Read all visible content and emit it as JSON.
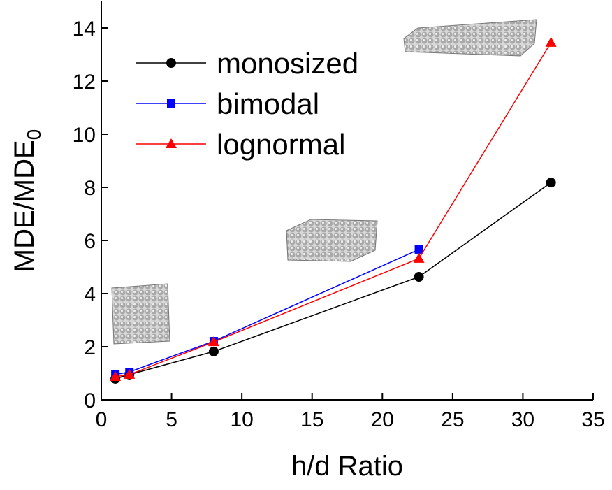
{
  "chart_data": {
    "type": "line",
    "x_label": "h/d Ratio",
    "y_label": {
      "text": "MDE/MDE",
      "subscript": "0"
    },
    "xlim": [
      0,
      35
    ],
    "xticks": [
      0,
      5,
      10,
      15,
      20,
      25,
      30,
      35
    ],
    "ylim": [
      0,
      15
    ],
    "yticks": [
      0,
      2,
      4,
      6,
      8,
      10,
      12,
      14
    ],
    "series": [
      {
        "name": "monosized",
        "color": "#000000",
        "marker": "circle",
        "x": [
          1,
          2,
          8,
          22.6,
          32
        ],
        "values": [
          0.79,
          0.95,
          1.82,
          4.63,
          8.18
        ]
      },
      {
        "name": "bimodal",
        "color": "#0000ff",
        "marker": "square",
        "x": [
          1,
          2,
          8,
          22.6
        ],
        "values": [
          0.95,
          1.05,
          2.21,
          5.66
        ]
      },
      {
        "name": "lognormal",
        "color": "#ff0000",
        "marker": "triangle",
        "x": [
          1,
          2,
          8,
          22.6,
          32
        ],
        "values": [
          0.87,
          0.95,
          2.18,
          5.32,
          13.45
        ]
      }
    ]
  }
}
